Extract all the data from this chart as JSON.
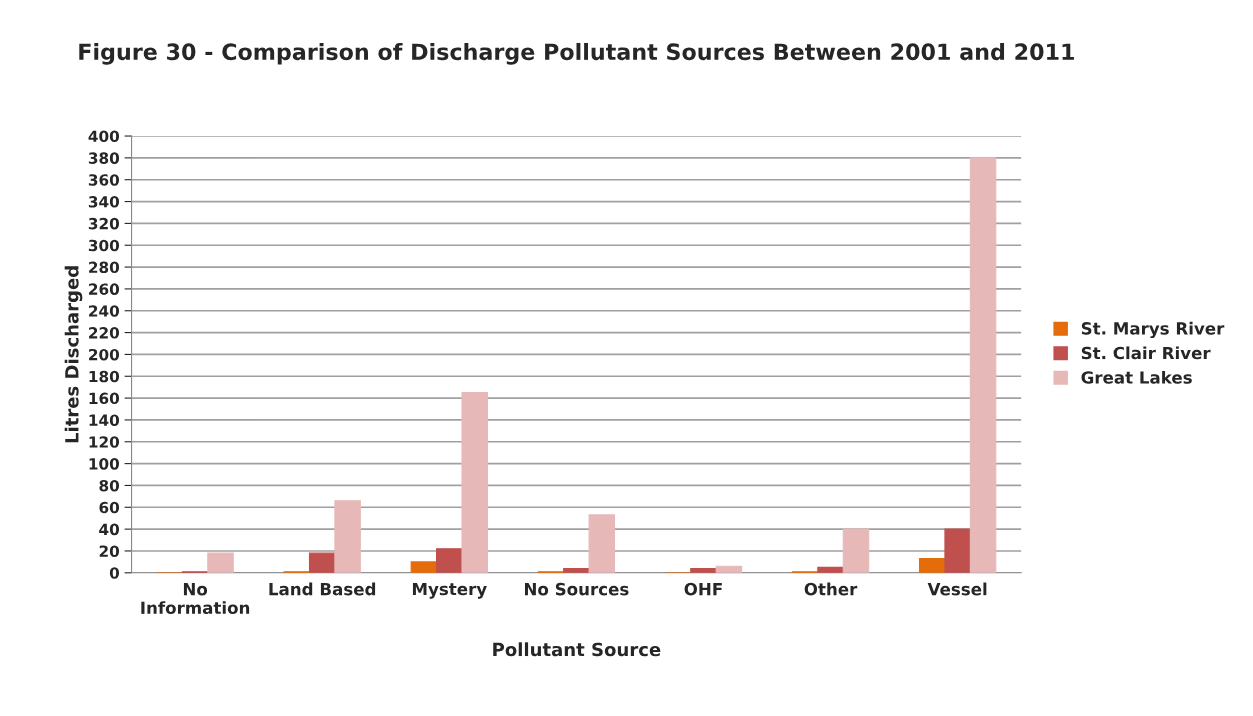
{
  "chart_data": {
    "type": "bar",
    "title": "Figure 30 - Comparison of Discharge Pollutant Sources Between 2001 and 2011",
    "xlabel": "Pollutant Source",
    "ylabel": "Litres Discharged",
    "categories": [
      "No\nInformation",
      "Land Based",
      "Mystery",
      "No Sources",
      "OHF",
      "Other",
      "Vessel"
    ],
    "series": [
      {
        "name": "St. Marys River",
        "color": "#e46c0a",
        "values": [
          0,
          1,
          10,
          1,
          0,
          1,
          13
        ]
      },
      {
        "name": "St. Clair River",
        "color": "#c0504d",
        "values": [
          1,
          18,
          22,
          4,
          4,
          5,
          40
        ]
      },
      {
        "name": "Great Lakes",
        "color": "#e6b9b8",
        "values": [
          18,
          66,
          165,
          53,
          6,
          40,
          380
        ]
      }
    ],
    "ylim": [
      0,
      400
    ],
    "yticks": [
      0,
      20,
      40,
      60,
      80,
      100,
      120,
      140,
      160,
      180,
      200,
      220,
      240,
      260,
      280,
      300,
      320,
      340,
      360,
      380,
      400
    ],
    "grid": "y",
    "legend": "right"
  }
}
